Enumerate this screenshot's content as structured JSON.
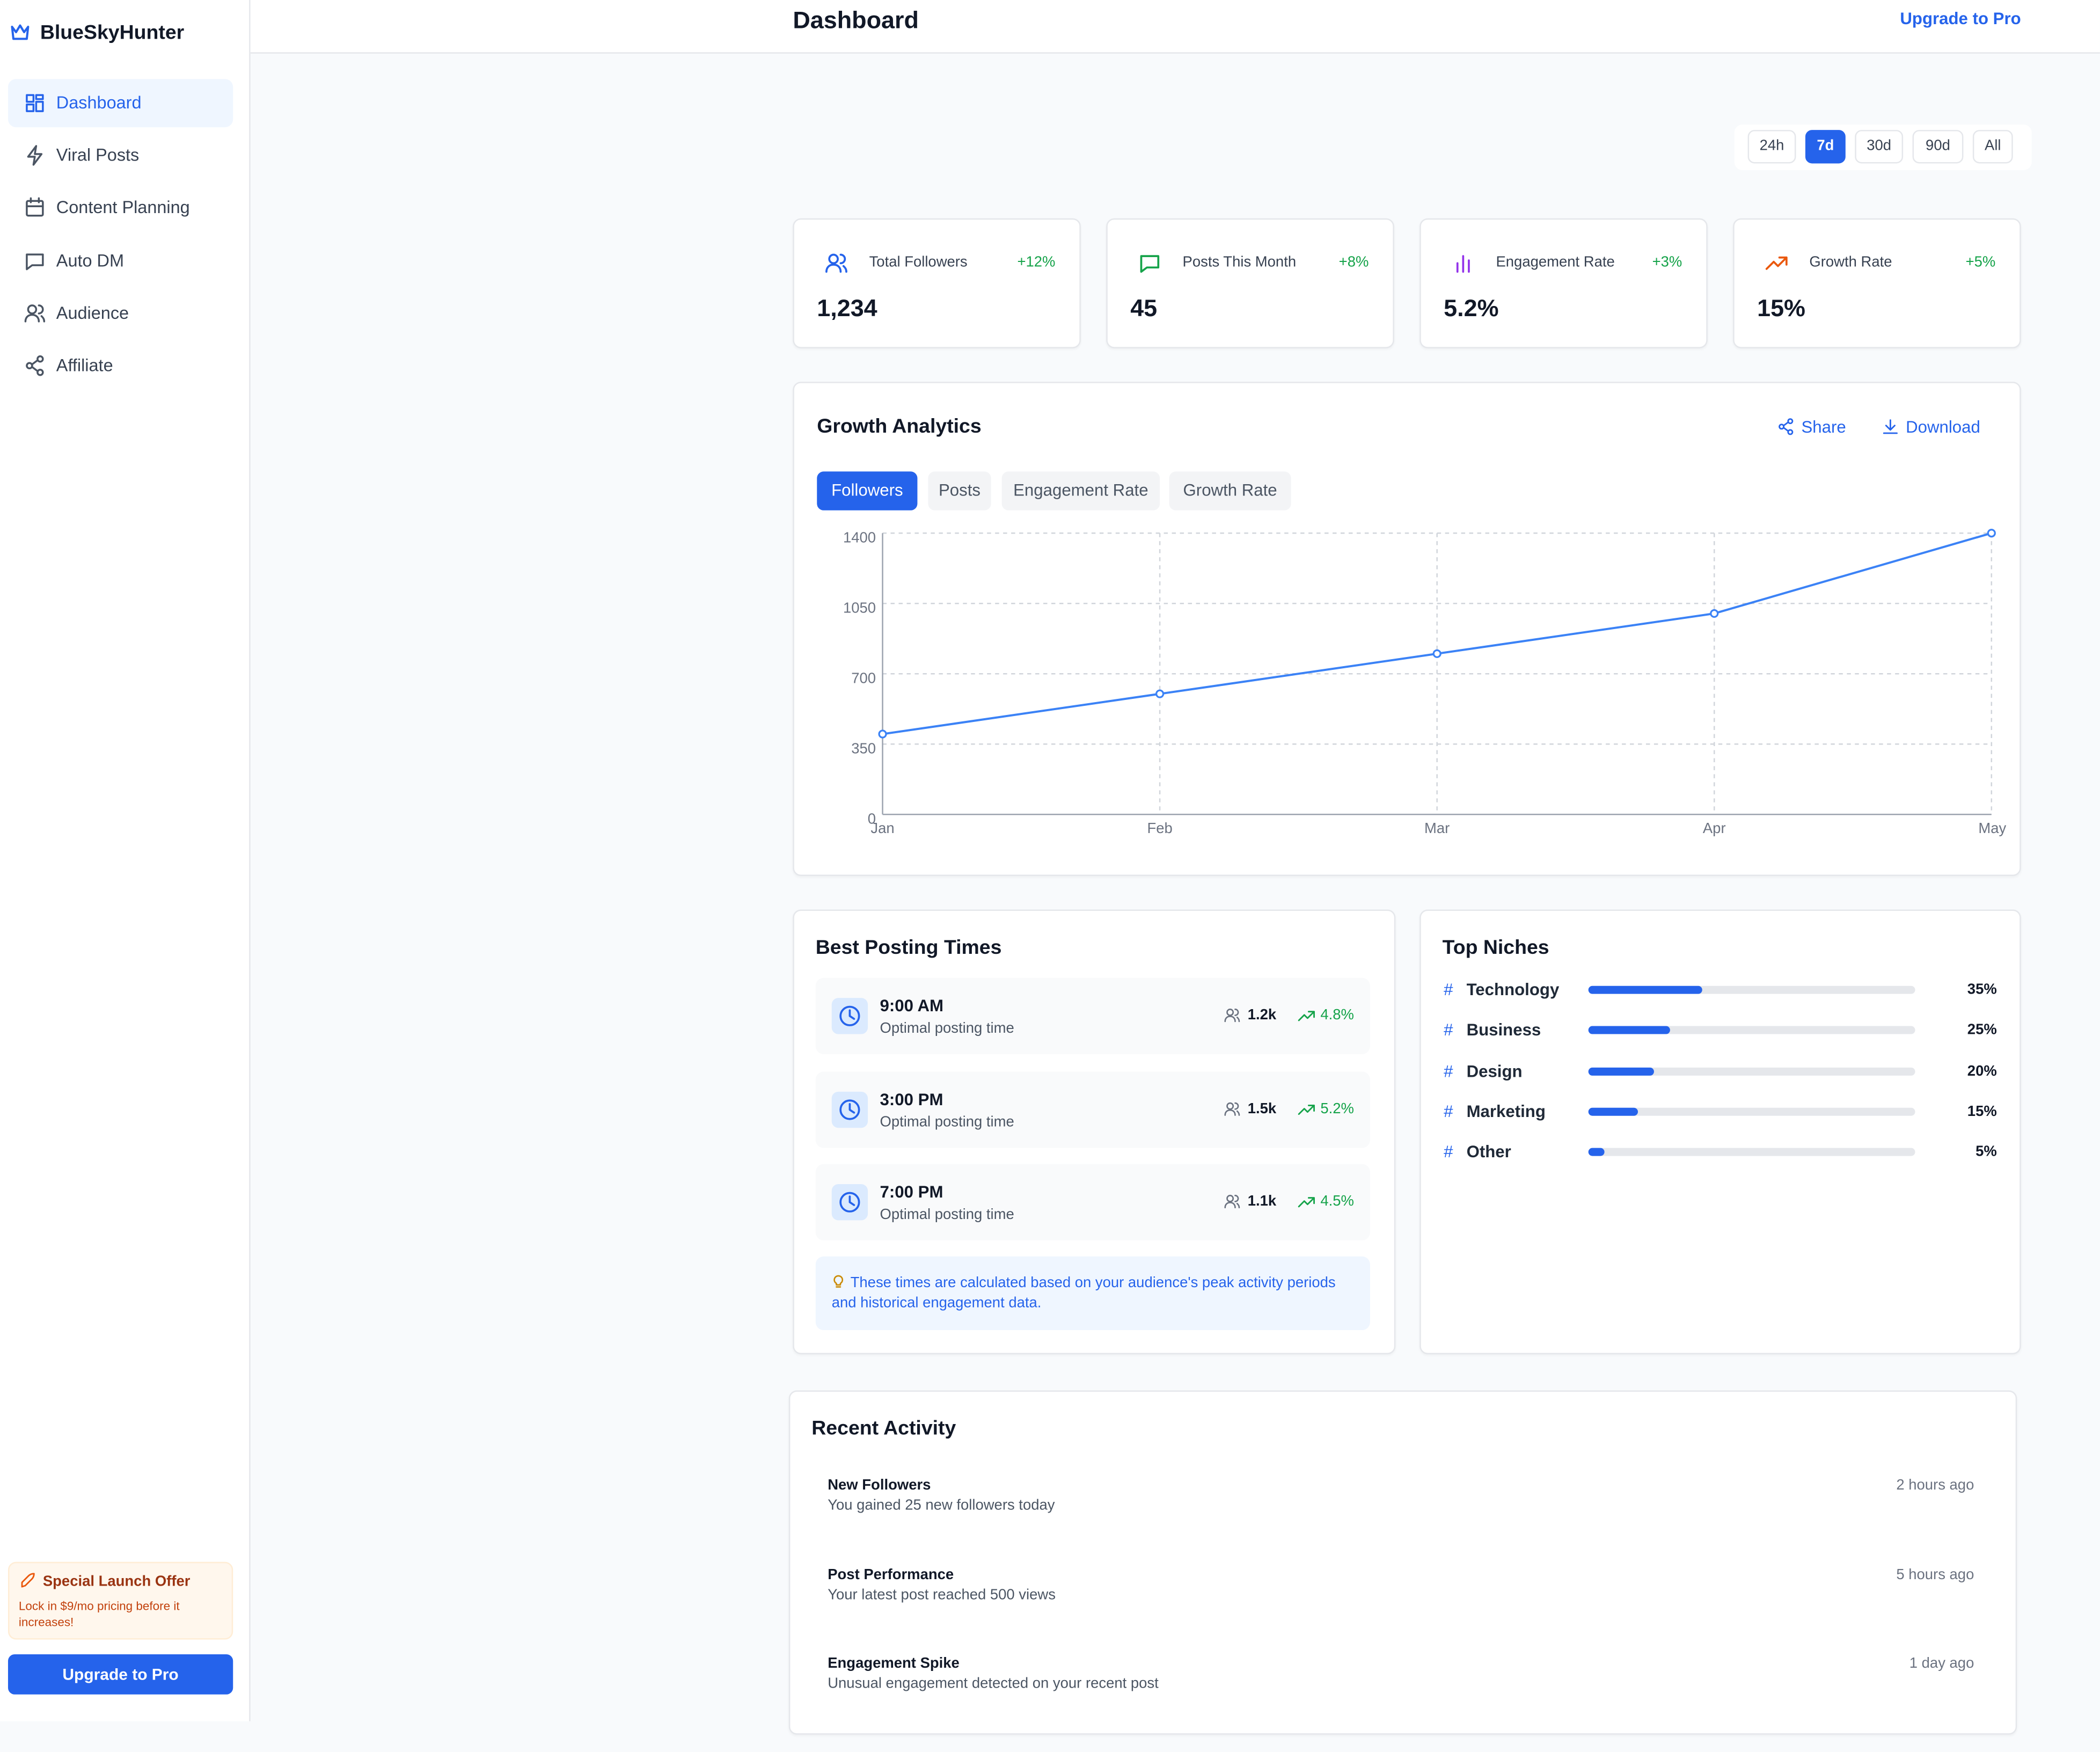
{
  "brand": "BlueSkyHunter",
  "nav": [
    "Dashboard",
    "Viral Posts",
    "Content Planning",
    "Auto DM",
    "Audience",
    "Affiliate"
  ],
  "promo": {
    "title": "Special Launch Offer",
    "text": "Lock in $9/mo pricing before it increases!",
    "button": "Upgrade to Pro"
  },
  "header": {
    "title": "Dashboard",
    "upgrade": "Upgrade to Pro"
  },
  "time_ranges": [
    "24h",
    "7d",
    "30d",
    "90d",
    "All"
  ],
  "stats": [
    {
      "label": "Total Followers",
      "change": "+12%",
      "value": "1,234"
    },
    {
      "label": "Posts This Month",
      "change": "+8%",
      "value": "45"
    },
    {
      "label": "Engagement Rate",
      "change": "+3%",
      "value": "5.2%"
    },
    {
      "label": "Growth Rate",
      "change": "+5%",
      "value": "15%"
    }
  ],
  "growth_analytics": {
    "title": "Growth Analytics",
    "share": "Share",
    "download": "Download",
    "tabs": [
      "Followers",
      "Posts",
      "Engagement Rate",
      "Growth Rate"
    ]
  },
  "chart_data": {
    "type": "line",
    "categories": [
      "Jan",
      "Feb",
      "Mar",
      "Apr",
      "May"
    ],
    "series": [
      {
        "name": "Followers",
        "color": "#3b82f6",
        "values": [
          400,
          600,
          800,
          1000,
          1400
        ]
      }
    ],
    "ylim": [
      0,
      1400
    ],
    "yticks": [
      0,
      350,
      700,
      1050,
      1400
    ],
    "grid": true
  },
  "posting_times": {
    "title": "Best Posting Times",
    "items": [
      {
        "time": "9:00 AM",
        "note": "Optimal posting time",
        "audience": "1.2k",
        "rate": "4.8%"
      },
      {
        "time": "3:00 PM",
        "note": "Optimal posting time",
        "audience": "1.5k",
        "rate": "5.2%"
      },
      {
        "time": "7:00 PM",
        "note": "Optimal posting time",
        "audience": "1.1k",
        "rate": "4.5%"
      }
    ],
    "tip": "These times are calculated based on your audience's peak activity periods and historical engagement data."
  },
  "niches": {
    "title": "Top Niches",
    "hash": "#",
    "names": [
      "Technology",
      "Business",
      "Design",
      "Marketing",
      "Other"
    ],
    "values": [
      35,
      25,
      20,
      15,
      5
    ],
    "value_labels": [
      "35%",
      "25%",
      "20%",
      "15%",
      "5%"
    ],
    "xlim": [
      0,
      100
    ]
  },
  "recent_activity": {
    "title": "Recent Activity",
    "items": [
      {
        "title": "New Followers",
        "text": "You gained 25 new followers today",
        "time": "2 hours ago"
      },
      {
        "title": "Post Performance",
        "text": "Your latest post reached 500 views",
        "time": "5 hours ago"
      },
      {
        "title": "Engagement Spike",
        "text": "Unusual engagement detected on your recent post",
        "time": "1 day ago"
      }
    ]
  }
}
